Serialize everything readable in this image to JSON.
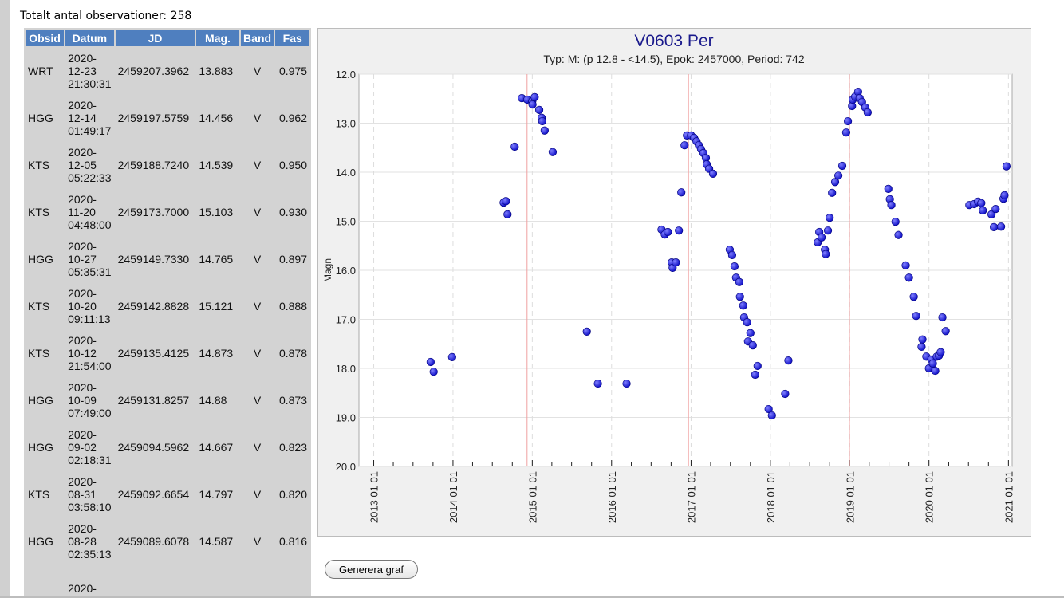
{
  "summary": {
    "total_label": "Totalt antal observationer: 258"
  },
  "table": {
    "headers": [
      "Obsid",
      "Datum",
      "JD",
      "Mag.",
      "Band",
      "Fas"
    ],
    "rows": [
      [
        "WRT",
        "2020-\n12-23\n21:30:31",
        "2459207.3962",
        "13.883",
        "V",
        "0.975"
      ],
      [
        "HGG",
        "2020-\n12-14\n01:49:17",
        "2459197.5759",
        "14.456",
        "V",
        "0.962"
      ],
      [
        "KTS",
        "2020-\n12-05\n05:22:33",
        "2459188.7240",
        "14.539",
        "V",
        "0.950"
      ],
      [
        "KTS",
        "2020-\n11-20\n04:48:00",
        "2459173.7000",
        "15.103",
        "V",
        "0.930"
      ],
      [
        "HGG",
        "2020-\n10-27\n05:35:31",
        "2459149.7330",
        "14.765",
        "V",
        "0.897"
      ],
      [
        "KTS",
        "2020-\n10-20\n09:11:13",
        "2459142.8828",
        "15.121",
        "V",
        "0.888"
      ],
      [
        "KTS",
        "2020-\n10-12\n21:54:00",
        "2459135.4125",
        "14.873",
        "V",
        "0.878"
      ],
      [
        "HGG",
        "2020-\n10-09\n07:49:00",
        "2459131.8257",
        "14.88",
        "V",
        "0.873"
      ],
      [
        "HGG",
        "2020-\n09-02\n02:18:31",
        "2459094.5962",
        "14.667",
        "V",
        "0.823"
      ],
      [
        "KTS",
        "2020-\n08-31\n03:58:10",
        "2459092.6654",
        "14.797",
        "V",
        "0.820"
      ],
      [
        "HGG",
        "2020-\n08-28\n02:35:13",
        "2459089.6078",
        "14.587",
        "V",
        "0.816"
      ],
      [
        "",
        "2020-",
        "",
        "",
        "",
        ""
      ]
    ]
  },
  "button": {
    "label": "Generera graf"
  },
  "chart_data": {
    "type": "scatter",
    "title": "V0603 Per",
    "subtitle": "Typ: M: (p 12.8 - <14.5), Epok: 2457000, Period: 742",
    "ylabel": "Magn",
    "xlabel": "",
    "ylim": [
      20.0,
      12.0
    ],
    "y_inverted": true,
    "yticks": [
      "12.0",
      "13.0",
      "14.0",
      "15.0",
      "16.0",
      "17.0",
      "18.0",
      "19.0",
      "20.0"
    ],
    "xlim": [
      "2012-10-25",
      "2021-01-18"
    ],
    "xticks": [
      {
        "date": "2013-01-01",
        "label": "2013 01 01"
      },
      {
        "date": "2014-01-01",
        "label": "2014 01 01"
      },
      {
        "date": "2015-01-01",
        "label": "2015 01 01"
      },
      {
        "date": "2016-01-01",
        "label": "2016 01 01"
      },
      {
        "date": "2017-01-01",
        "label": "2017 01 01"
      },
      {
        "date": "2018-01-01",
        "label": "2018 01 01"
      },
      {
        "date": "2019-01-01",
        "label": "2019 01 01"
      },
      {
        "date": "2020-01-01",
        "label": "2020 01 01"
      },
      {
        "date": "2021-01-01",
        "label": "2021 01 01"
      }
    ],
    "grid": true,
    "maxima_lines": [
      "2014-12-08",
      "2016-12-20",
      "2018-12-31"
    ],
    "colors": {
      "point": "#1010c8",
      "maxima_line": "#f0a0a0",
      "plot_bg": "#ffffff",
      "frame_bg": "#f0f0f0",
      "title": "#1a1a8c"
    },
    "points": [
      [
        "2013-09-20",
        17.87
      ],
      [
        "2013-10-04",
        18.07
      ],
      [
        "2013-12-28",
        17.77
      ],
      [
        "2014-08-22",
        14.62
      ],
      [
        "2014-09-02",
        14.59
      ],
      [
        "2014-09-09",
        14.86
      ],
      [
        "2014-10-12",
        13.48
      ],
      [
        "2014-11-14",
        12.49
      ],
      [
        "2014-12-09",
        12.52
      ],
      [
        "2015-01-01",
        12.55
      ],
      [
        "2015-01-12",
        12.47
      ],
      [
        "2015-01-02",
        12.62
      ],
      [
        "2015-02-02",
        12.73
      ],
      [
        "2015-02-13",
        12.89
      ],
      [
        "2015-02-16",
        12.96
      ],
      [
        "2015-02-27",
        13.15
      ],
      [
        "2015-04-05",
        13.59
      ],
      [
        "2015-09-09",
        17.25
      ],
      [
        "2015-10-30",
        18.31
      ],
      [
        "2016-03-10",
        18.31
      ],
      [
        "2016-08-18",
        15.17
      ],
      [
        "2016-09-02",
        15.27
      ],
      [
        "2016-09-16",
        15.22
      ],
      [
        "2016-10-04",
        15.84
      ],
      [
        "2016-10-08",
        15.95
      ],
      [
        "2016-10-23",
        15.84
      ],
      [
        "2016-11-06",
        15.19
      ],
      [
        "2016-11-17",
        14.41
      ],
      [
        "2016-12-02",
        13.45
      ],
      [
        "2016-12-13",
        13.25
      ],
      [
        "2017-01-01",
        13.25
      ],
      [
        "2017-01-15",
        13.3
      ],
      [
        "2017-01-26",
        13.37
      ],
      [
        "2017-02-06",
        13.45
      ],
      [
        "2017-02-16",
        13.53
      ],
      [
        "2017-02-27",
        13.61
      ],
      [
        "2017-03-10",
        13.71
      ],
      [
        "2017-03-14",
        13.84
      ],
      [
        "2017-03-25",
        13.93
      ],
      [
        "2017-04-12",
        14.03
      ],
      [
        "2017-06-28",
        15.58
      ],
      [
        "2017-07-09",
        15.69
      ],
      [
        "2017-07-20",
        15.92
      ],
      [
        "2017-07-27",
        16.15
      ],
      [
        "2017-08-11",
        16.24
      ],
      [
        "2017-08-14",
        16.54
      ],
      [
        "2017-08-29",
        16.72
      ],
      [
        "2017-09-02",
        16.96
      ],
      [
        "2017-09-16",
        17.06
      ],
      [
        "2017-09-20",
        17.45
      ],
      [
        "2017-10-01",
        17.28
      ],
      [
        "2017-10-12",
        17.53
      ],
      [
        "2017-10-23",
        18.13
      ],
      [
        "2017-11-03",
        17.95
      ],
      [
        "2017-12-24",
        18.83
      ],
      [
        "2018-01-08",
        18.96
      ],
      [
        "2018-03-10",
        18.52
      ],
      [
        "2018-03-25",
        17.84
      ],
      [
        "2018-08-07",
        15.43
      ],
      [
        "2018-08-14",
        15.22
      ],
      [
        "2018-08-25",
        15.33
      ],
      [
        "2018-09-09",
        15.58
      ],
      [
        "2018-09-13",
        15.67
      ],
      [
        "2018-09-23",
        15.19
      ],
      [
        "2018-10-01",
        14.93
      ],
      [
        "2018-10-12",
        14.42
      ],
      [
        "2018-10-26",
        14.2
      ],
      [
        "2018-11-10",
        14.07
      ],
      [
        "2018-11-28",
        13.87
      ],
      [
        "2018-12-16",
        13.19
      ],
      [
        "2018-12-24",
        12.96
      ],
      [
        "2019-01-12",
        12.65
      ],
      [
        "2019-01-15",
        12.52
      ],
      [
        "2019-01-26",
        12.46
      ],
      [
        "2019-02-09",
        12.36
      ],
      [
        "2019-02-16",
        12.49
      ],
      [
        "2019-02-27",
        12.57
      ],
      [
        "2019-03-14",
        12.68
      ],
      [
        "2019-03-25",
        12.78
      ],
      [
        "2019-06-28",
        14.34
      ],
      [
        "2019-07-05",
        14.55
      ],
      [
        "2019-07-12",
        14.67
      ],
      [
        "2019-07-31",
        15.01
      ],
      [
        "2019-08-14",
        15.28
      ],
      [
        "2019-09-16",
        15.9
      ],
      [
        "2019-10-01",
        16.15
      ],
      [
        "2019-10-23",
        16.54
      ],
      [
        "2019-11-03",
        16.93
      ],
      [
        "2019-12-02",
        17.41
      ],
      [
        "2019-11-28",
        17.56
      ],
      [
        "2019-12-20",
        17.76
      ],
      [
        "2020-01-01",
        18.0
      ],
      [
        "2020-01-12",
        17.82
      ],
      [
        "2020-01-19",
        17.9
      ],
      [
        "2020-01-30",
        18.05
      ],
      [
        "2020-02-06",
        17.76
      ],
      [
        "2020-02-16",
        17.74
      ],
      [
        "2020-02-24",
        17.67
      ],
      [
        "2020-03-03",
        16.96
      ],
      [
        "2020-03-18",
        17.24
      ],
      [
        "2020-07-05",
        14.67
      ],
      [
        "2020-07-27",
        14.65
      ],
      [
        "2020-08-14",
        14.6
      ],
      [
        "2020-08-29",
        14.63
      ],
      [
        "2020-09-05",
        14.78
      ],
      [
        "2020-10-15",
        14.86
      ],
      [
        "2020-10-26",
        15.12
      ],
      [
        "2020-11-03",
        14.75
      ],
      [
        "2020-11-28",
        15.11
      ],
      [
        "2020-12-09",
        14.54
      ],
      [
        "2020-12-14",
        14.47
      ],
      [
        "2020-12-23",
        13.88
      ]
    ]
  }
}
